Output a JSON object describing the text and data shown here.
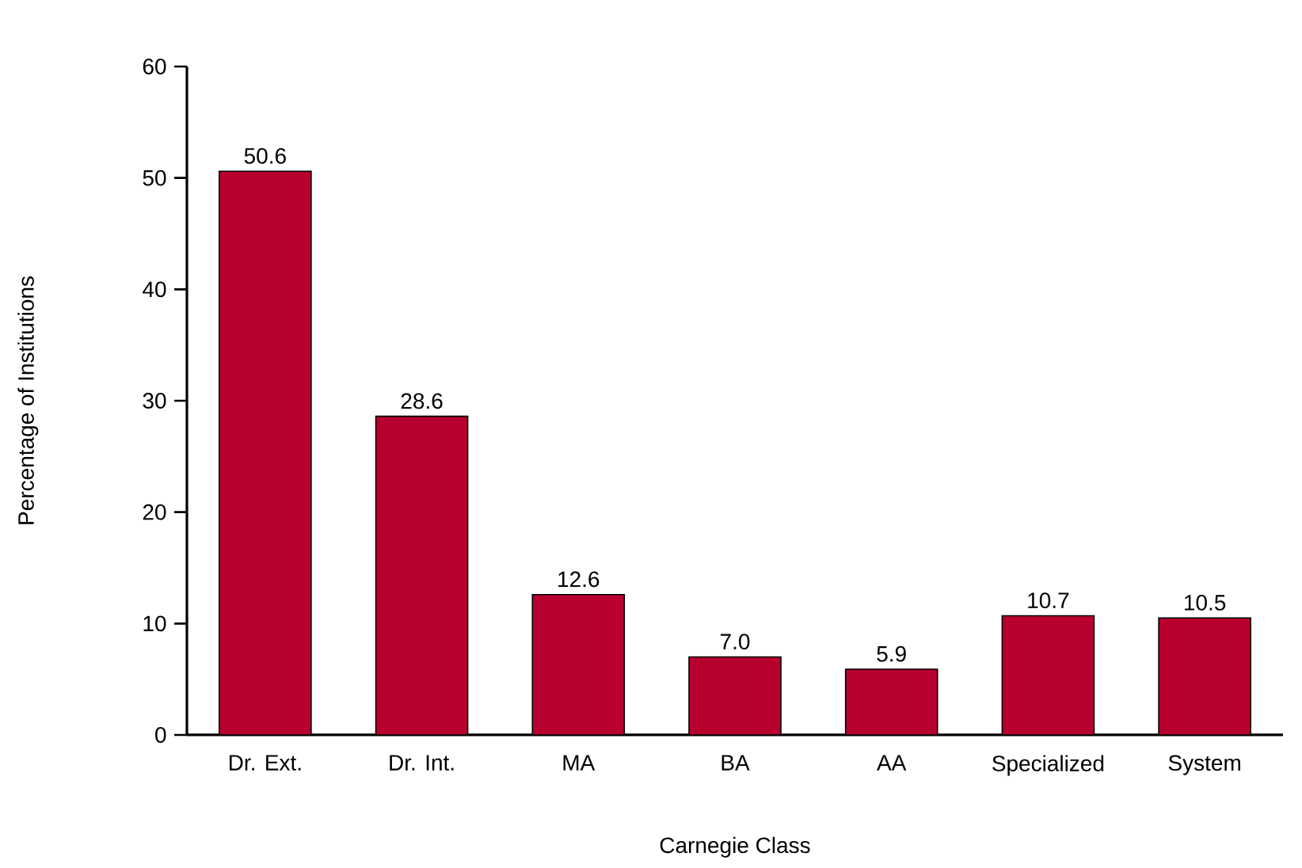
{
  "chart_data": {
    "type": "bar",
    "xlabel": "Carnegie Class",
    "ylabel": "Percentage of Institutions",
    "categories": [
      "Dr. Ext.",
      "Dr. Int.",
      "MA",
      "BA",
      "AA",
      "Specialized",
      "System"
    ],
    "values": [
      50.6,
      28.6,
      12.6,
      7.0,
      5.9,
      10.7,
      10.5
    ],
    "value_labels": [
      "50.6",
      "28.6",
      "12.6",
      "7.0",
      "5.9",
      "10.7",
      "10.5"
    ],
    "color": "#b8002f",
    "ylim": [
      0,
      60
    ],
    "yticks": [
      0,
      10,
      20,
      30,
      40,
      50,
      60
    ]
  }
}
